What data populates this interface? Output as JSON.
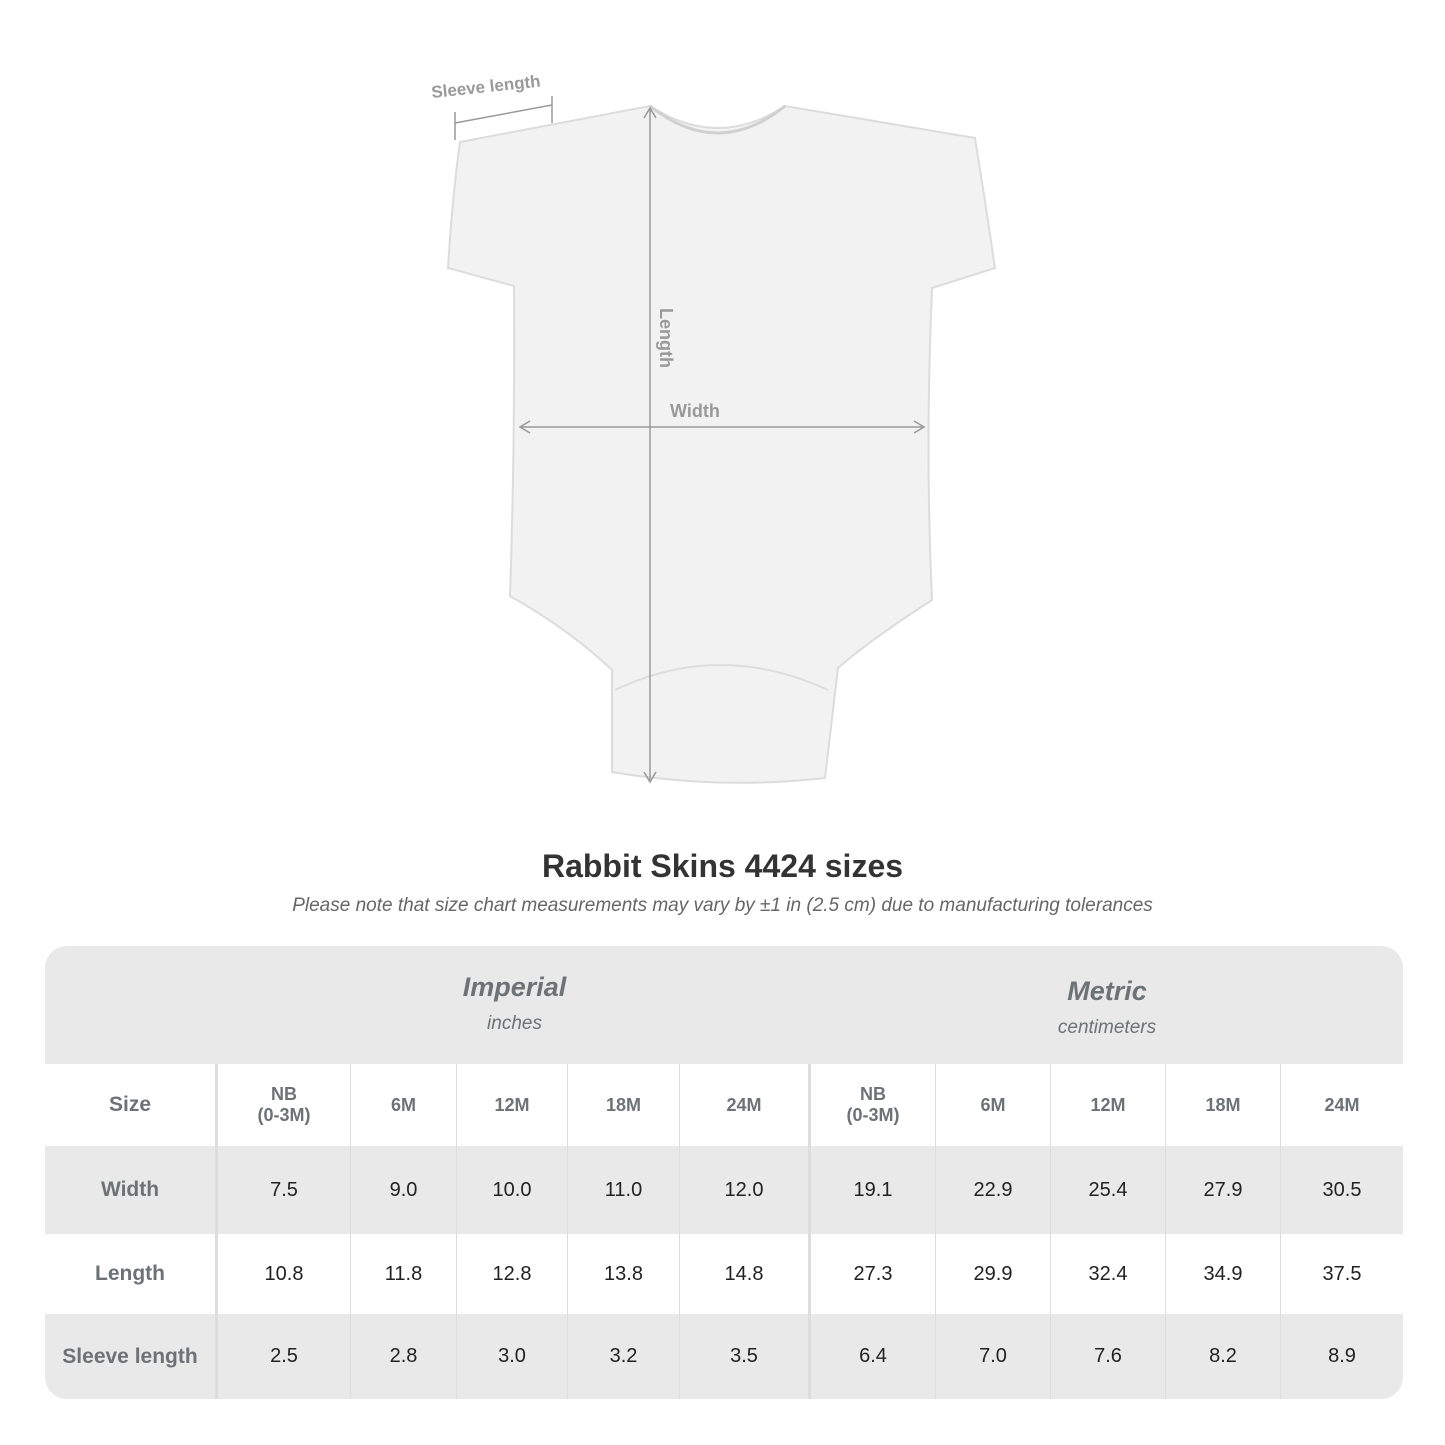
{
  "diagram": {
    "sleeve_label": "Sleeve length",
    "length_label": "Length",
    "width_label": "Width"
  },
  "title": "Rabbit Skins 4424 sizes",
  "note": "Please note that size chart measurements may vary by ±1 in (2.5 cm) due to manufacturing tolerances",
  "table": {
    "imperial": {
      "label": "Imperial",
      "unit": "inches"
    },
    "metric": {
      "label": "Metric",
      "unit": "centimeters"
    },
    "size_label": "Size",
    "sizes": [
      "NB (0-3M)",
      "6M",
      "12M",
      "18M",
      "24M"
    ],
    "rows": [
      {
        "label": "Width",
        "imperial": [
          "7.5",
          "9.0",
          "10.0",
          "11.0",
          "12.0"
        ],
        "metric": [
          "19.1",
          "22.9",
          "25.4",
          "27.9",
          "30.5"
        ]
      },
      {
        "label": "Length",
        "imperial": [
          "10.8",
          "11.8",
          "12.8",
          "13.8",
          "14.8"
        ],
        "metric": [
          "27.3",
          "29.9",
          "32.4",
          "34.9",
          "37.5"
        ]
      },
      {
        "label": "Sleeve length",
        "imperial": [
          "2.5",
          "2.8",
          "3.0",
          "3.2",
          "3.5"
        ],
        "metric": [
          "6.4",
          "7.0",
          "7.6",
          "8.2",
          "8.9"
        ]
      }
    ]
  }
}
